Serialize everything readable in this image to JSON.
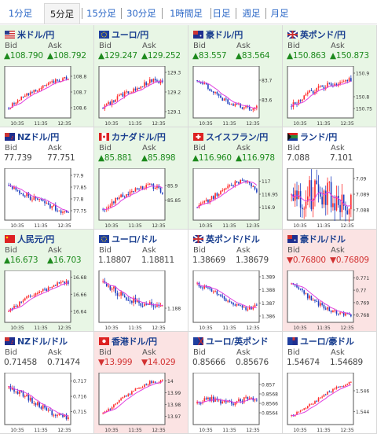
{
  "tabs": [
    "1分足",
    "5分足",
    "15分足",
    "30分足",
    "1時間足",
    "日足",
    "週足",
    "月足"
  ],
  "active_tab": "5分足",
  "bid_label": "Bid",
  "ask_label": "Ask",
  "colors": {
    "up_bg": "#e8f6e5",
    "down_bg": "#fbe3e3",
    "up_text": "#1d8a1d",
    "down_text": "#d23232",
    "bull_candle": "#ff2a2a",
    "bear_candle": "#1f3fbf",
    "ma_line": "#e040e0"
  },
  "cells": [
    {
      "pair": "米ドル/円",
      "flag": "us",
      "state": "up",
      "bid": "▲108.790",
      "ask": "▲108.792",
      "chart_data": {
        "type": "candlestick",
        "ticks": [
          "108.8",
          "108.7",
          "108.6"
        ],
        "times": [
          "10:35",
          "11:35",
          "12:35"
        ],
        "ylim": [
          108.55,
          108.85
        ],
        "trend": [
          108.6,
          108.66,
          108.7,
          108.74,
          108.77,
          108.79
        ],
        "vol": 0.02,
        "shape": "up"
      }
    },
    {
      "pair": "ユーロ/円",
      "flag": "eu",
      "state": "up",
      "bid": "▲129.247",
      "ask": "▲129.252",
      "chart_data": {
        "type": "candlestick",
        "ticks": [
          "129.3",
          "129.2",
          "129.1"
        ],
        "times": [
          "10:35",
          "11:35",
          "12:35"
        ],
        "ylim": [
          129.08,
          129.32
        ],
        "trend": [
          129.12,
          129.16,
          129.2,
          129.22,
          129.26,
          129.25
        ],
        "vol": 0.02,
        "shape": "up"
      }
    },
    {
      "pair": "豪ドル/円",
      "flag": "au",
      "state": "up",
      "bid": "▲83.557",
      "ask": "▲83.564",
      "chart_data": {
        "type": "candlestick",
        "ticks": [
          "83.7",
          "83.6"
        ],
        "times": [
          "10:35",
          "11:35",
          "12:35"
        ],
        "ylim": [
          83.52,
          83.76
        ],
        "trend": [
          83.7,
          83.66,
          83.6,
          83.58,
          83.56,
          83.56
        ],
        "vol": 0.02,
        "shape": "down"
      }
    },
    {
      "pair": "英ポンド/円",
      "flag": "uk",
      "state": "up",
      "bid": "▲150.863",
      "ask": "▲150.873",
      "chart_data": {
        "type": "candlestick",
        "ticks": [
          "150.9",
          "150.8",
          "150.75"
        ],
        "times": [
          "10:35",
          "11:35",
          "12:35"
        ],
        "ylim": [
          150.72,
          150.92
        ],
        "trend": [
          150.76,
          150.8,
          150.83,
          150.85,
          150.86,
          150.87
        ],
        "vol": 0.02,
        "shape": "up"
      }
    },
    {
      "pair": "NZドル/円",
      "flag": "nz",
      "state": "flat",
      "bid": "77.739",
      "ask": "77.751",
      "chart_data": {
        "type": "candlestick",
        "ticks": [
          "77.9",
          "77.85",
          "77.8",
          "77.75"
        ],
        "times": [
          "10:35",
          "11:35",
          "12:35"
        ],
        "ylim": [
          77.72,
          77.92
        ],
        "trend": [
          77.86,
          77.83,
          77.8,
          77.78,
          77.76,
          77.74
        ],
        "vol": 0.02,
        "shape": "down"
      }
    },
    {
      "pair": "カナダドル/円",
      "flag": "ca",
      "state": "up",
      "bid": "▲85.881",
      "ask": "▲85.898",
      "chart_data": {
        "type": "candlestick",
        "ticks": [
          "85.9",
          "85.85"
        ],
        "times": [
          "10:35",
          "11:35",
          "12:35"
        ],
        "ylim": [
          85.79,
          85.95
        ],
        "trend": [
          85.82,
          85.85,
          85.87,
          85.89,
          85.9,
          85.88
        ],
        "vol": 0.015,
        "shape": "up"
      }
    },
    {
      "pair": "スイスフラン/円",
      "flag": "ch",
      "state": "up",
      "bid": "▲116.960",
      "ask": "▲116.978",
      "chart_data": {
        "type": "candlestick",
        "ticks": [
          "117",
          "116.95",
          "116.9"
        ],
        "times": [
          "10:35",
          "11:35",
          "12:35"
        ],
        "ylim": [
          116.86,
          117.04
        ],
        "trend": [
          116.9,
          116.93,
          116.96,
          116.99,
          117.0,
          116.96
        ],
        "vol": 0.015,
        "shape": "up"
      }
    },
    {
      "pair": "ランド/円",
      "flag": "za",
      "state": "flat",
      "bid": "7.088",
      "ask": "7.101",
      "chart_data": {
        "type": "candlestick",
        "ticks": [
          "7.09",
          "7.089",
          "7.088"
        ],
        "times": [
          "10:35",
          "11:35",
          "12:35"
        ],
        "ylim": [
          7.0875,
          7.0905
        ],
        "trend": [
          7.089,
          7.089,
          7.089,
          7.089,
          7.0885,
          7.0885
        ],
        "vol": 0.0012,
        "shape": "tall"
      }
    },
    {
      "pair": "人民元/円",
      "flag": "cn",
      "state": "up",
      "bid": "▲16.673",
      "ask": "▲16.703",
      "chart_data": {
        "type": "candlestick",
        "ticks": [
          "16.68",
          "16.66",
          "16.64"
        ],
        "times": [
          "10:35",
          "11:35",
          "12:35"
        ],
        "ylim": [
          16.63,
          16.685
        ],
        "trend": [
          16.64,
          16.65,
          16.66,
          16.665,
          16.672,
          16.674
        ],
        "vol": 0.004,
        "shape": "up"
      }
    },
    {
      "pair": "ユーロ/ドル",
      "flag": "eu2",
      "state": "flat",
      "bid": "1.18807",
      "ask": "1.18811",
      "chart_data": {
        "type": "candlestick",
        "ticks": [
          "1.188"
        ],
        "times": [
          "10:35",
          "11:35",
          "12:35"
        ],
        "ylim": [
          1.1876,
          1.1892
        ],
        "trend": [
          1.1889,
          1.1886,
          1.1883,
          1.1882,
          1.1881,
          1.1881
        ],
        "vol": 0.0002,
        "shape": "down"
      }
    },
    {
      "pair": "英ポンド/ドル",
      "flag": "uk2",
      "state": "flat",
      "bid": "1.38669",
      "ask": "1.38679",
      "chart_data": {
        "type": "candlestick",
        "ticks": [
          "1.389",
          "1.388",
          "1.387",
          "1.386"
        ],
        "times": [
          "10:35",
          "11:35",
          "12:35"
        ],
        "ylim": [
          1.3857,
          1.3893
        ],
        "trend": [
          1.3885,
          1.388,
          1.3875,
          1.387,
          1.3866,
          1.3867
        ],
        "vol": 0.0003,
        "shape": "down"
      }
    },
    {
      "pair": "豪ドル/ドル",
      "flag": "au2",
      "state": "down",
      "bid": "▼0.76800",
      "ask": "▼0.76809",
      "chart_data": {
        "type": "candlestick",
        "ticks": [
          "0.771",
          "0.77",
          "0.769",
          "0.768"
        ],
        "times": [
          "10:35",
          "11:35",
          "12:35"
        ],
        "ylim": [
          0.7676,
          0.7714
        ],
        "trend": [
          0.7705,
          0.7698,
          0.769,
          0.7685,
          0.7681,
          0.768
        ],
        "vol": 0.0003,
        "shape": "down"
      }
    },
    {
      "pair": "NZドル/ドル",
      "flag": "nz2",
      "state": "flat",
      "bid": "0.71458",
      "ask": "0.71474",
      "chart_data": {
        "type": "candlestick",
        "ticks": [
          "0.717",
          "0.716",
          "0.715"
        ],
        "times": [
          "10:35",
          "11:35",
          "12:35"
        ],
        "ylim": [
          0.7143,
          0.7174
        ],
        "trend": [
          0.7166,
          0.7162,
          0.7157,
          0.7152,
          0.7148,
          0.7146
        ],
        "vol": 0.0003,
        "shape": "down"
      }
    },
    {
      "pair": "香港ドル/円",
      "flag": "hk",
      "state": "down",
      "bid": "▼13.999",
      "ask": "▼14.029",
      "chart_data": {
        "type": "candlestick",
        "ticks": [
          "14",
          "13.99",
          "13.98",
          "13.97"
        ],
        "times": [
          "10:35",
          "11:35",
          "12:35"
        ],
        "ylim": [
          13.965,
          14.005
        ],
        "trend": [
          13.972,
          13.98,
          13.988,
          13.994,
          13.999,
          14.0
        ],
        "vol": 0.002,
        "shape": "up"
      }
    },
    {
      "pair": "ユーロ/英ポンド",
      "flag": "euuk",
      "state": "flat",
      "bid": "0.85666",
      "ask": "0.85676",
      "chart_data": {
        "type": "candlestick",
        "ticks": [
          "0.857",
          "0.8568",
          "0.8566",
          "0.8564"
        ],
        "times": [
          "10:35",
          "11:35",
          "12:35"
        ],
        "ylim": [
          0.8562,
          0.8572
        ],
        "trend": [
          0.8566,
          0.8567,
          0.8566,
          0.8566,
          0.8567,
          0.8567
        ],
        "vol": 8e-05,
        "shape": "tall"
      }
    },
    {
      "pair": "ユーロ/豪ドル",
      "flag": "euau",
      "state": "flat",
      "bid": "1.54674",
      "ask": "1.54689",
      "chart_data": {
        "type": "candlestick",
        "ticks": [
          "1.546",
          "1.544"
        ],
        "times": [
          "10:35",
          "11:35",
          "12:35"
        ],
        "ylim": [
          1.543,
          1.5475
        ],
        "trend": [
          1.5436,
          1.5442,
          1.545,
          1.5458,
          1.5464,
          1.5468
        ],
        "vol": 0.0002,
        "shape": "up"
      }
    }
  ]
}
